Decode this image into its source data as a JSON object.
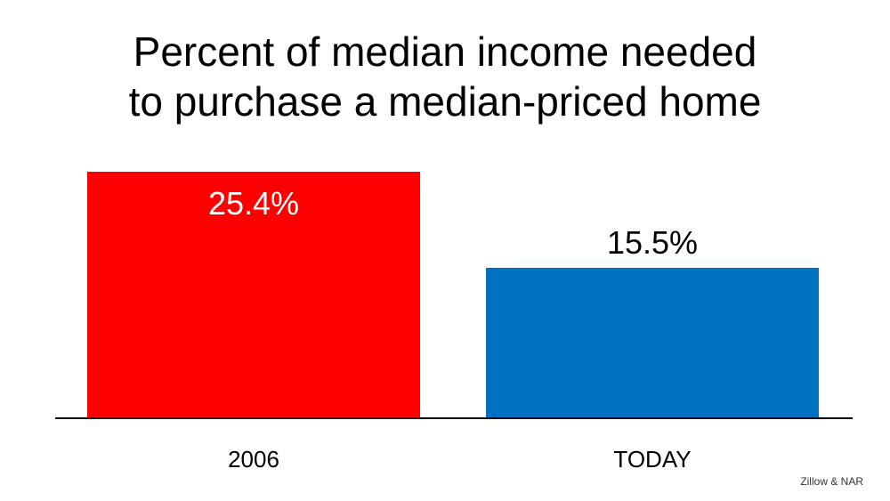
{
  "chart_data": {
    "type": "bar",
    "title": [
      "Percent of median income needed",
      "to purchase a median-priced home"
    ],
    "categories": [
      "2006",
      "TODAY"
    ],
    "values": [
      25.4,
      15.5
    ],
    "value_labels": [
      "25.4%",
      "15.5%"
    ],
    "unit": "%",
    "colors": [
      "#FF0000",
      "#0070C0"
    ],
    "ylim": [
      0,
      25.4
    ],
    "grid": false,
    "legend": "none"
  },
  "source": "Zillow & NAR"
}
